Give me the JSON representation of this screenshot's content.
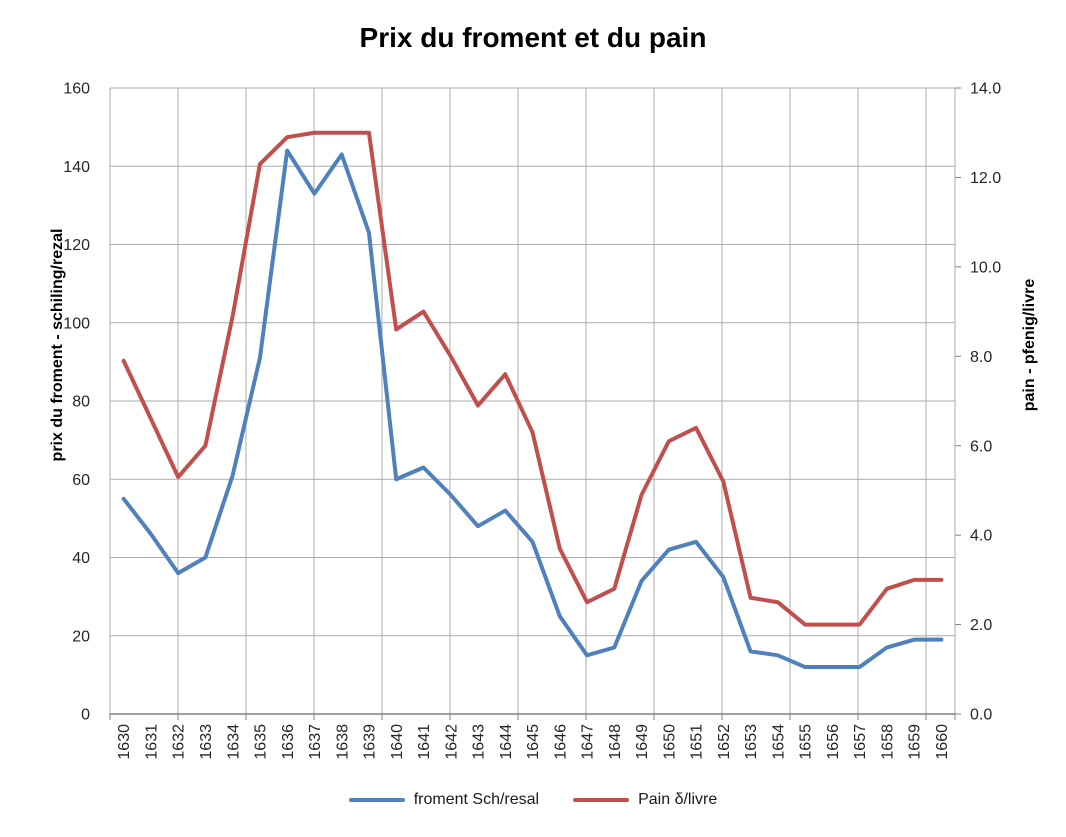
{
  "title": "Prix du froment et du pain",
  "chart_data": {
    "type": "line",
    "x": [
      1630,
      1631,
      1632,
      1633,
      1634,
      1635,
      1636,
      1637,
      1638,
      1639,
      1640,
      1641,
      1642,
      1643,
      1644,
      1645,
      1646,
      1647,
      1648,
      1649,
      1650,
      1651,
      1652,
      1653,
      1654,
      1655,
      1656,
      1657,
      1658,
      1659,
      1660
    ],
    "series": [
      {
        "name": "froment Sch/resal",
        "axis": "left",
        "color": "#4F81BD",
        "values": [
          55,
          46,
          36,
          40,
          61,
          91,
          144,
          133,
          143,
          123,
          60,
          63,
          56,
          48,
          52,
          44,
          25,
          15,
          17,
          34,
          42,
          44,
          35,
          16,
          15,
          12,
          12,
          12,
          17,
          19,
          19
        ]
      },
      {
        "name": "Pain δ/livre",
        "axis": "right",
        "color": "#C0504D",
        "values": [
          7.9,
          6.6,
          5.3,
          6.0,
          8.9,
          12.3,
          12.9,
          13.0,
          13.0,
          13.0,
          8.6,
          9.0,
          8.0,
          6.9,
          7.6,
          6.3,
          3.7,
          2.5,
          2.8,
          4.9,
          6.1,
          6.4,
          5.2,
          2.6,
          2.5,
          2.0,
          2.0,
          2.0,
          2.8,
          3.0,
          3.0
        ]
      }
    ],
    "left_axis": {
      "label": "prix du froment - schiling/rezal",
      "min": 0,
      "max": 160,
      "step": 20,
      "ticks": [
        "0",
        "20",
        "40",
        "60",
        "80",
        "100",
        "120",
        "140",
        "160"
      ]
    },
    "right_axis": {
      "label": "pain - pfenig/livre",
      "min": 0,
      "max": 14,
      "step": 2,
      "ticks": [
        "0.0",
        "2.0",
        "4.0",
        "6.0",
        "8.0",
        "10.0",
        "12.0",
        "14.0"
      ]
    },
    "grid": true,
    "legend_position": "bottom"
  },
  "colors": {
    "froment_line": "#4F81BD",
    "pain_line": "#C0504D",
    "gridline": "#ABABAB",
    "axis_line": "#808080",
    "tick_text": "#262626"
  }
}
